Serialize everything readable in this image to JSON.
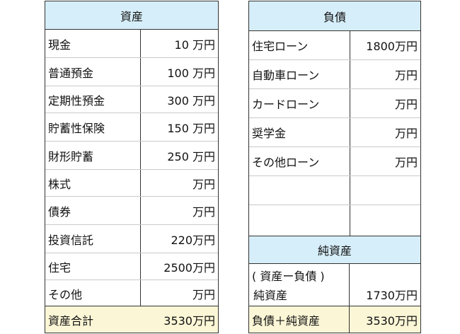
{
  "assets": {
    "title": "資産",
    "rows": [
      {
        "label": "現金",
        "amount": "10 万円"
      },
      {
        "label": "普通預金",
        "amount": "100 万円"
      },
      {
        "label": "定期性預金",
        "amount": "300 万円"
      },
      {
        "label": "貯蓄性保険",
        "amount": "150 万円"
      },
      {
        "label": "財形貯蓄",
        "amount": "250 万円"
      },
      {
        "label": "株式",
        "amount": "万円"
      },
      {
        "label": "債券",
        "amount": "万円"
      },
      {
        "label": "投資信託",
        "amount": "220万円"
      },
      {
        "label": "住宅",
        "amount": "2500万円"
      },
      {
        "label": "その他",
        "amount": "万円"
      }
    ],
    "total_label": "資産合計",
    "total_amount": "3530万円"
  },
  "liabilities": {
    "title": "負債",
    "rows": [
      {
        "label": "住宅ローン",
        "amount": "1800万円"
      },
      {
        "label": "自動車ローン",
        "amount": "万円"
      },
      {
        "label": "カードローン",
        "amount": "万円"
      },
      {
        "label": "奨学金",
        "amount": "万円"
      },
      {
        "label": "その他ローン",
        "amount": "万円"
      },
      {
        "label": "",
        "amount": ""
      },
      {
        "label": "",
        "amount": ""
      }
    ],
    "net_title": "純資産",
    "net_note": "( 資産ー負債 )",
    "net_label": "純資産",
    "net_amount": "1730万円",
    "total_label": "負債＋純資産",
    "total_amount": "3530万円"
  }
}
